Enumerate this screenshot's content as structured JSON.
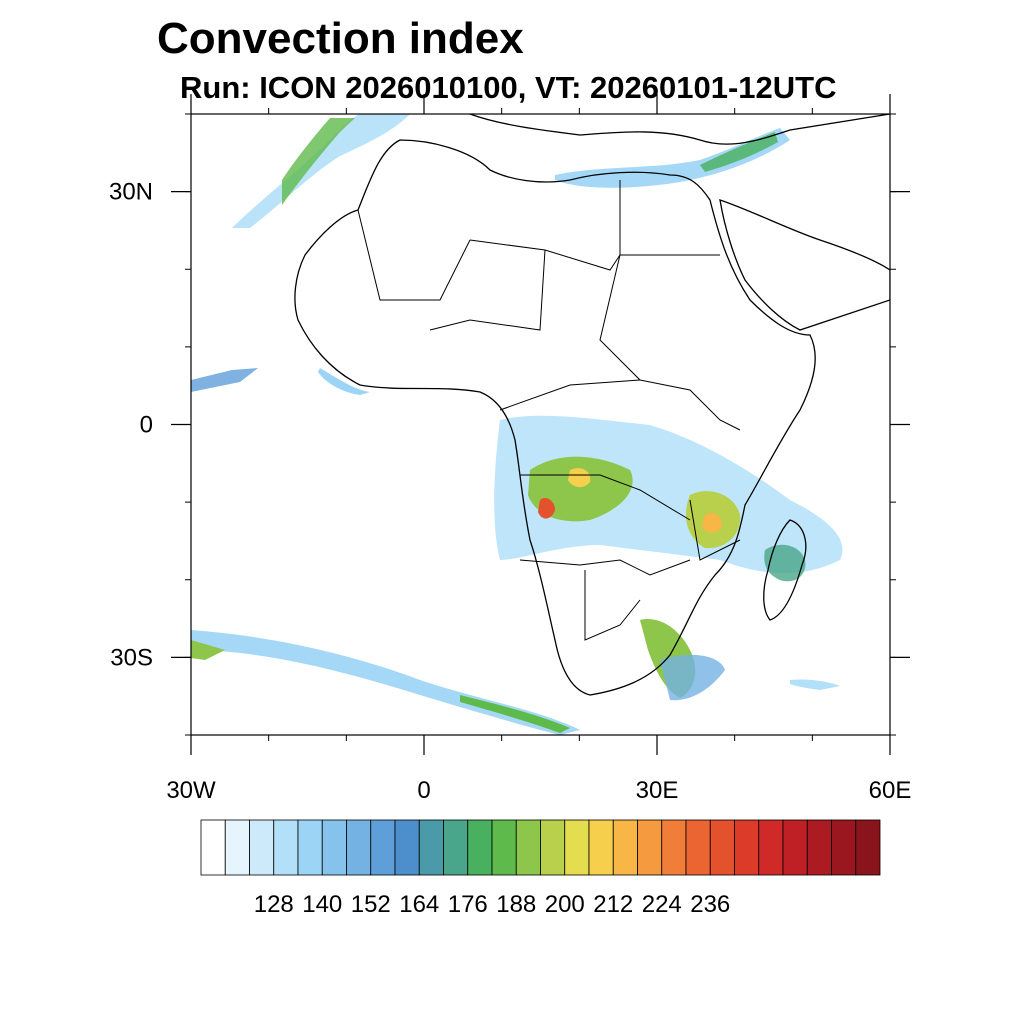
{
  "title": "Convection index",
  "subtitle": "Run: ICON 2026010100,  VT: 20260101-12UTC",
  "map": {
    "extent": {
      "lon_min": -30,
      "lon_max": 60,
      "lat_min": -40,
      "lat_max": 40
    },
    "lon_ticks": [
      {
        "lon": -30,
        "label": "30W"
      },
      {
        "lon": 0,
        "label": "0"
      },
      {
        "lon": 30,
        "label": "30E"
      },
      {
        "lon": 60,
        "label": "60E"
      }
    ],
    "lat_ticks": [
      {
        "lat": 30,
        "label": "30N"
      },
      {
        "lat": 0,
        "label": "0"
      },
      {
        "lat": -30,
        "label": "30S"
      }
    ]
  },
  "colorbar": {
    "labels": [
      "128",
      "140",
      "152",
      "164",
      "176",
      "188",
      "200",
      "212",
      "224",
      "236"
    ],
    "colors": [
      "#ffffff",
      "#e6f5fd",
      "#cdeafb",
      "#b3e0f9",
      "#9bd4f5",
      "#86c3ec",
      "#74b2e3",
      "#5f9fd9",
      "#4d8fcd",
      "#4a9aa9",
      "#4aa68a",
      "#48b05e",
      "#5fba4c",
      "#8ec54b",
      "#b8d04b",
      "#e3dd4f",
      "#f6d04c",
      "#f7b646",
      "#f59a3e",
      "#f07e38",
      "#ea6532",
      "#e3512d",
      "#dc3b2a",
      "#cf2a28",
      "#bf2026",
      "#ad1b22",
      "#9a171f",
      "#8a141c"
    ]
  }
}
